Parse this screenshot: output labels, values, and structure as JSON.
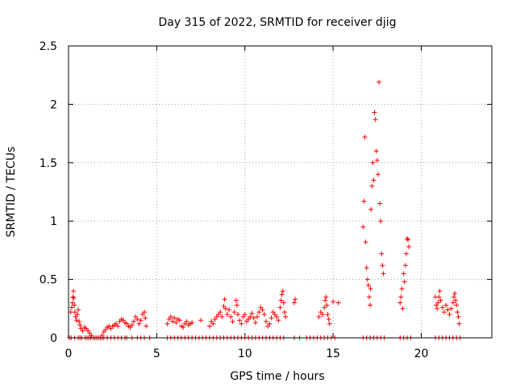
{
  "chart_data": {
    "type": "scatter",
    "title": "Day 315 of 2022, SRMTID for receiver djig",
    "xlabel": "GPS time / hours",
    "ylabel": "SRMTID / TECUs",
    "xlim": [
      0,
      24
    ],
    "ylim": [
      0,
      2.5
    ],
    "xticks": [
      {
        "value": 0,
        "label": "0"
      },
      {
        "value": 5,
        "label": "5"
      },
      {
        "value": 10,
        "label": "10"
      },
      {
        "value": 15,
        "label": "15"
      },
      {
        "value": 20,
        "label": "20"
      }
    ],
    "yticks": [
      {
        "value": 0,
        "label": "0"
      },
      {
        "value": 0.5,
        "label": "0.5"
      },
      {
        "value": 1,
        "label": "1"
      },
      {
        "value": 1.5,
        "label": "1.5"
      },
      {
        "value": 2,
        "label": "2"
      },
      {
        "value": 2.5,
        "label": "2.5"
      }
    ],
    "grid": true,
    "marker": "plus",
    "color": "#ff0000",
    "series": [
      {
        "name": "SRMTID",
        "points": [
          [
            0.12,
            0.22
          ],
          [
            0.18,
            0.26
          ],
          [
            0.22,
            0.3
          ],
          [
            0.25,
            0.35
          ],
          [
            0.28,
            0.4
          ],
          [
            0.3,
            0.34
          ],
          [
            0.33,
            0.28
          ],
          [
            0.36,
            0.22
          ],
          [
            0.4,
            0.18
          ],
          [
            0.45,
            0.15
          ],
          [
            0.5,
            0.2
          ],
          [
            0.55,
            0.24
          ],
          [
            0.6,
            0.14
          ],
          [
            0.65,
            0.11
          ],
          [
            0.7,
            0.08
          ],
          [
            0.8,
            0.06
          ],
          [
            0.9,
            0.09
          ],
          [
            1.0,
            0.08
          ],
          [
            1.1,
            0.06
          ],
          [
            1.2,
            0.04
          ],
          [
            1.3,
            0.02
          ],
          [
            1.9,
            0.02
          ],
          [
            2.0,
            0.05
          ],
          [
            2.1,
            0.07
          ],
          [
            2.2,
            0.09
          ],
          [
            2.3,
            0.1
          ],
          [
            2.4,
            0.08
          ],
          [
            2.5,
            0.1
          ],
          [
            2.6,
            0.11
          ],
          [
            2.7,
            0.12
          ],
          [
            2.8,
            0.1
          ],
          [
            2.9,
            0.14
          ],
          [
            3.0,
            0.16
          ],
          [
            3.1,
            0.15
          ],
          [
            3.2,
            0.13
          ],
          [
            3.3,
            0.12
          ],
          [
            3.4,
            0.1
          ],
          [
            3.5,
            0.09
          ],
          [
            3.6,
            0.11
          ],
          [
            3.7,
            0.14
          ],
          [
            3.8,
            0.18
          ],
          [
            3.9,
            0.16
          ],
          [
            4.0,
            0.12
          ],
          [
            4.1,
            0.15
          ],
          [
            4.2,
            0.2
          ],
          [
            4.3,
            0.22
          ],
          [
            4.35,
            0.17
          ],
          [
            4.4,
            0.1
          ],
          [
            5.6,
            0.12
          ],
          [
            5.7,
            0.16
          ],
          [
            5.8,
            0.18
          ],
          [
            5.9,
            0.14
          ],
          [
            6.0,
            0.17
          ],
          [
            6.1,
            0.13
          ],
          [
            6.2,
            0.16
          ],
          [
            6.3,
            0.15
          ],
          [
            6.4,
            0.1
          ],
          [
            6.5,
            0.09
          ],
          [
            6.6,
            0.12
          ],
          [
            6.7,
            0.14
          ],
          [
            6.8,
            0.11
          ],
          [
            6.9,
            0.12
          ],
          [
            7.0,
            0.13
          ],
          [
            7.5,
            0.15
          ],
          [
            8.0,
            0.1
          ],
          [
            8.1,
            0.14
          ],
          [
            8.2,
            0.12
          ],
          [
            8.3,
            0.16
          ],
          [
            8.4,
            0.18
          ],
          [
            8.5,
            0.2
          ],
          [
            8.6,
            0.22
          ],
          [
            8.7,
            0.18
          ],
          [
            8.8,
            0.27
          ],
          [
            8.85,
            0.33
          ],
          [
            8.9,
            0.25
          ],
          [
            9.0,
            0.2
          ],
          [
            9.1,
            0.24
          ],
          [
            9.2,
            0.18
          ],
          [
            9.3,
            0.14
          ],
          [
            9.4,
            0.22
          ],
          [
            9.5,
            0.32
          ],
          [
            9.55,
            0.28
          ],
          [
            9.6,
            0.2
          ],
          [
            9.7,
            0.15
          ],
          [
            9.8,
            0.12
          ],
          [
            9.9,
            0.18
          ],
          [
            10.0,
            0.2
          ],
          [
            10.1,
            0.14
          ],
          [
            10.2,
            0.16
          ],
          [
            10.3,
            0.18
          ],
          [
            10.4,
            0.21
          ],
          [
            10.5,
            0.17
          ],
          [
            10.6,
            0.13
          ],
          [
            10.7,
            0.18
          ],
          [
            10.8,
            0.22
          ],
          [
            10.9,
            0.26
          ],
          [
            11.0,
            0.24
          ],
          [
            11.1,
            0.2
          ],
          [
            11.2,
            0.14
          ],
          [
            11.3,
            0.1
          ],
          [
            11.4,
            0.12
          ],
          [
            11.5,
            0.17
          ],
          [
            11.6,
            0.22
          ],
          [
            11.7,
            0.2
          ],
          [
            11.8,
            0.18
          ],
          [
            11.9,
            0.15
          ],
          [
            12.0,
            0.26
          ],
          [
            12.05,
            0.32
          ],
          [
            12.1,
            0.37
          ],
          [
            12.15,
            0.4
          ],
          [
            12.2,
            0.3
          ],
          [
            12.25,
            0.22
          ],
          [
            12.3,
            0.18
          ],
          [
            12.8,
            0.3
          ],
          [
            12.85,
            0.33
          ],
          [
            14.2,
            0.18
          ],
          [
            14.3,
            0.22
          ],
          [
            14.4,
            0.2
          ],
          [
            14.5,
            0.26
          ],
          [
            14.55,
            0.32
          ],
          [
            14.6,
            0.35
          ],
          [
            14.65,
            0.28
          ],
          [
            14.7,
            0.2
          ],
          [
            14.75,
            0.16
          ],
          [
            14.8,
            0.12
          ],
          [
            15.0,
            0.31
          ],
          [
            15.3,
            0.3
          ],
          [
            16.7,
            0.95
          ],
          [
            16.75,
            1.17
          ],
          [
            16.8,
            1.72
          ],
          [
            16.85,
            0.82
          ],
          [
            16.9,
            0.6
          ],
          [
            16.95,
            0.5
          ],
          [
            17.0,
            0.45
          ],
          [
            17.05,
            0.35
          ],
          [
            17.1,
            0.28
          ],
          [
            17.12,
            0.42
          ],
          [
            17.15,
            1.1
          ],
          [
            17.2,
            1.3
          ],
          [
            17.25,
            1.5
          ],
          [
            17.3,
            1.35
          ],
          [
            17.35,
            1.93
          ],
          [
            17.4,
            1.87
          ],
          [
            17.45,
            1.6
          ],
          [
            17.5,
            1.52
          ],
          [
            17.55,
            1.4
          ],
          [
            17.6,
            2.19
          ],
          [
            17.65,
            1.15
          ],
          [
            17.7,
            1.0
          ],
          [
            17.75,
            0.72
          ],
          [
            17.8,
            0.62
          ],
          [
            17.85,
            0.55
          ],
          [
            18.8,
            0.3
          ],
          [
            18.85,
            0.35
          ],
          [
            18.9,
            0.42
          ],
          [
            18.95,
            0.25
          ],
          [
            19.0,
            0.55
          ],
          [
            19.05,
            0.48
          ],
          [
            19.1,
            0.62
          ],
          [
            19.15,
            0.72
          ],
          [
            19.2,
            0.85
          ],
          [
            19.25,
            0.84
          ],
          [
            19.3,
            0.78
          ],
          [
            20.8,
            0.35
          ],
          [
            20.85,
            0.28
          ],
          [
            20.9,
            0.25
          ],
          [
            20.95,
            0.3
          ],
          [
            21.0,
            0.35
          ],
          [
            21.05,
            0.4
          ],
          [
            21.1,
            0.32
          ],
          [
            21.2,
            0.26
          ],
          [
            21.3,
            0.22
          ],
          [
            21.4,
            0.28
          ],
          [
            21.5,
            0.24
          ],
          [
            21.6,
            0.2
          ],
          [
            21.7,
            0.25
          ],
          [
            21.8,
            0.3
          ],
          [
            21.85,
            0.35
          ],
          [
            21.9,
            0.38
          ],
          [
            21.95,
            0.32
          ],
          [
            22.0,
            0.28
          ],
          [
            22.05,
            0.22
          ],
          [
            22.1,
            0.18
          ],
          [
            22.15,
            0.12
          ]
        ],
        "zero_x": [
          0.05,
          0.15,
          0.35,
          0.55,
          0.65,
          0.75,
          0.95,
          1.05,
          1.15,
          1.25,
          1.4,
          1.5,
          1.6,
          1.7,
          1.8,
          1.9,
          2.0,
          2.2,
          2.4,
          2.6,
          2.8,
          3.0,
          3.2,
          3.3,
          3.6,
          3.9,
          4.1,
          4.3,
          4.6,
          5.6,
          5.8,
          6.0,
          6.2,
          6.4,
          6.6,
          6.8,
          7.0,
          7.2,
          7.4,
          7.6,
          7.8,
          8.0,
          8.2,
          8.4,
          8.6,
          8.8,
          9.0,
          9.2,
          9.4,
          9.6,
          9.8,
          10.0,
          10.2,
          10.4,
          10.6,
          10.8,
          11.0,
          11.2,
          11.4,
          11.6,
          11.8,
          12.0,
          12.2,
          12.8,
          13.1,
          13.5,
          13.7,
          13.9,
          14.1,
          14.3,
          14.5,
          14.7,
          14.9,
          15.1,
          16.7,
          16.9,
          17.1,
          17.3,
          17.5,
          17.7,
          17.9,
          18.8,
          19.0,
          19.2,
          19.4,
          20.8,
          21.0,
          21.2,
          21.4,
          21.6,
          21.8,
          22.0,
          22.2
        ]
      }
    ]
  }
}
